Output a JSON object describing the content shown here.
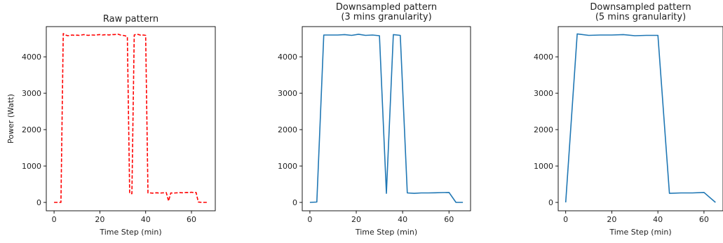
{
  "chart_data": [
    {
      "type": "line",
      "title": [
        "Raw pattern"
      ],
      "xlabel": "Time Step (min)",
      "ylabel": "Power (Watt)",
      "xlim": [
        -3.4,
        70.4
      ],
      "ylim": [
        -230,
        4830
      ],
      "xticks": [
        0,
        20,
        40,
        60
      ],
      "yticks": [
        0,
        1000,
        2000,
        3000,
        4000
      ],
      "line_style": "dashed",
      "color": "#ff0000",
      "series": [
        {
          "x": [
            0,
            1,
            2,
            3,
            4,
            5,
            6,
            7,
            8,
            9,
            10,
            11,
            12,
            13,
            14,
            15,
            16,
            17,
            18,
            19,
            20,
            21,
            22,
            23,
            24,
            25,
            26,
            27,
            28,
            29,
            30,
            31,
            32,
            33,
            34,
            35,
            36,
            37,
            38,
            39,
            40,
            41,
            42,
            43,
            44,
            45,
            46,
            47,
            48,
            49,
            50,
            51,
            52,
            53,
            54,
            55,
            56,
            57,
            58,
            59,
            60,
            61,
            62,
            63,
            64,
            65,
            66,
            67
          ],
          "y": [
            0,
            0,
            0,
            0,
            4640,
            4600,
            4580,
            4590,
            4600,
            4590,
            4595,
            4590,
            4600,
            4610,
            4595,
            4590,
            4600,
            4600,
            4595,
            4605,
            4610,
            4600,
            4605,
            4610,
            4600,
            4615,
            4610,
            4615,
            4620,
            4600,
            4590,
            4580,
            4550,
            250,
            240,
            4600,
            4620,
            4610,
            4590,
            4600,
            4590,
            260,
            260,
            255,
            260,
            265,
            255,
            260,
            265,
            270,
            40,
            260,
            255,
            260,
            265,
            270,
            265,
            270,
            275,
            270,
            280,
            270,
            275,
            10,
            5,
            0,
            0,
            0
          ]
        }
      ]
    },
    {
      "type": "line",
      "title": [
        "Downsampled pattern",
        "(3 mins granularity)"
      ],
      "xlabel": "Time Step (min)",
      "ylabel": "",
      "xlim": [
        -3.3,
        69.3
      ],
      "ylim": [
        -230,
        4830
      ],
      "xticks": [
        0,
        20,
        40,
        60
      ],
      "yticks": [
        0,
        1000,
        2000,
        3000,
        4000
      ],
      "line_style": "solid",
      "color": "#1f77b4",
      "series": [
        {
          "x": [
            0,
            3,
            6,
            9,
            12,
            15,
            18,
            21,
            24,
            27,
            30,
            33,
            36,
            39,
            42,
            45,
            48,
            51,
            54,
            57,
            60,
            63,
            66
          ],
          "y": [
            0,
            10,
            4600,
            4600,
            4600,
            4610,
            4590,
            4620,
            4590,
            4600,
            4580,
            250,
            4610,
            4590,
            260,
            250,
            260,
            260,
            265,
            270,
            275,
            0,
            0
          ]
        }
      ]
    },
    {
      "type": "line",
      "title": [
        "Downsampled pattern",
        "(5 mins granularity)"
      ],
      "xlabel": "Time Step (min)",
      "ylabel": "",
      "xlim": [
        -3.25,
        68.25
      ],
      "ylim": [
        -230,
        4830
      ],
      "xticks": [
        0,
        20,
        40,
        60
      ],
      "yticks": [
        0,
        1000,
        2000,
        3000,
        4000
      ],
      "line_style": "solid",
      "color": "#1f77b4",
      "series": [
        {
          "x": [
            0,
            5,
            10,
            15,
            20,
            25,
            30,
            35,
            40,
            45,
            50,
            55,
            60,
            65
          ],
          "y": [
            0,
            4630,
            4590,
            4600,
            4600,
            4610,
            4580,
            4590,
            4590,
            250,
            260,
            260,
            275,
            0
          ]
        }
      ]
    }
  ]
}
